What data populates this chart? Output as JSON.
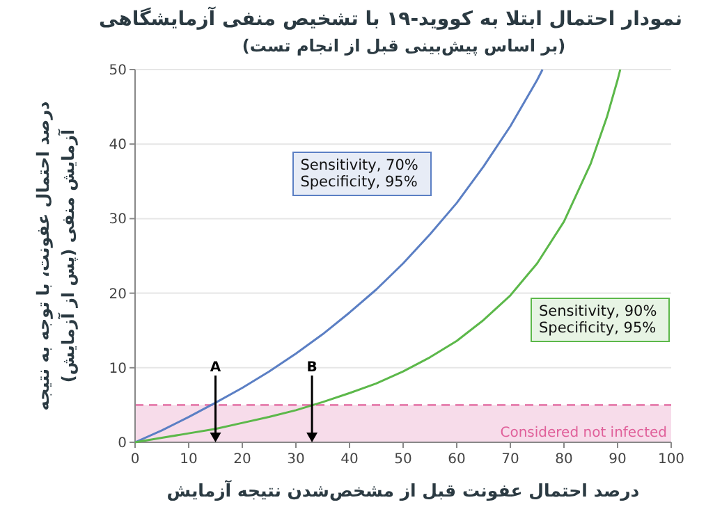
{
  "chart_data": {
    "type": "line",
    "title": "نمودار احتمال ابتلا به کووید-۱۹ با  تشخیص منفی آزمایشگاهی",
    "subtitle": "(بر اساس پیش‌بینی قبل از انجام تست)",
    "xlabel": "درصد احتمال عفونت قبل از مشخص‌شدن نتیجه آزمایش",
    "ylabel": "درصد احتمال عفونت، با توجه به نتیجه آزمایش منفی (پس از آزمایش)",
    "series": [
      {
        "name": "Sensitivity, 70% Specificity, 95%",
        "color": "#5b7fc4",
        "x": [
          0,
          5,
          10,
          15,
          20,
          25,
          30,
          35,
          40,
          45,
          50,
          55,
          60,
          65,
          70,
          75,
          76
        ],
        "values": [
          0,
          1.6,
          3.4,
          5.3,
          7.3,
          9.5,
          11.9,
          14.5,
          17.4,
          20.5,
          24.0,
          27.9,
          32.1,
          37.0,
          42.4,
          48.6,
          50.0
        ]
      },
      {
        "name": "Sensitivity, 90% Specificity, 95%",
        "color": "#5cb84a",
        "x": [
          0,
          5,
          10,
          15,
          20,
          25,
          30,
          35,
          40,
          45,
          50,
          55,
          60,
          65,
          70,
          75,
          80,
          85,
          88,
          90,
          90.5
        ],
        "values": [
          0,
          0.6,
          1.2,
          1.8,
          2.6,
          3.4,
          4.3,
          5.4,
          6.6,
          7.9,
          9.5,
          11.4,
          13.6,
          16.4,
          19.7,
          24.0,
          29.6,
          37.4,
          43.6,
          48.6,
          50.0
        ]
      }
    ],
    "xlim": [
      0,
      100
    ],
    "xticks": [
      0,
      10,
      20,
      30,
      40,
      50,
      60,
      70,
      80,
      90,
      100
    ],
    "ylim": [
      0,
      50
    ],
    "yticks": [
      0,
      10,
      20,
      30,
      40,
      50
    ],
    "grid": "y",
    "marker": "none",
    "line_style": "solid",
    "ref_lines": [
      {
        "axis": "y",
        "value": 5,
        "color": "#e0609a",
        "line_style": "dashed"
      }
    ],
    "bands": [
      {
        "axis": "y",
        "from": 0,
        "to": 5,
        "label": "Considered not infected",
        "color": "#f7dcea"
      }
    ],
    "annotations": [
      {
        "text": "A",
        "x": 15,
        "y": 0
      },
      {
        "text": "B",
        "x": 33,
        "y": 0
      }
    ]
  }
}
